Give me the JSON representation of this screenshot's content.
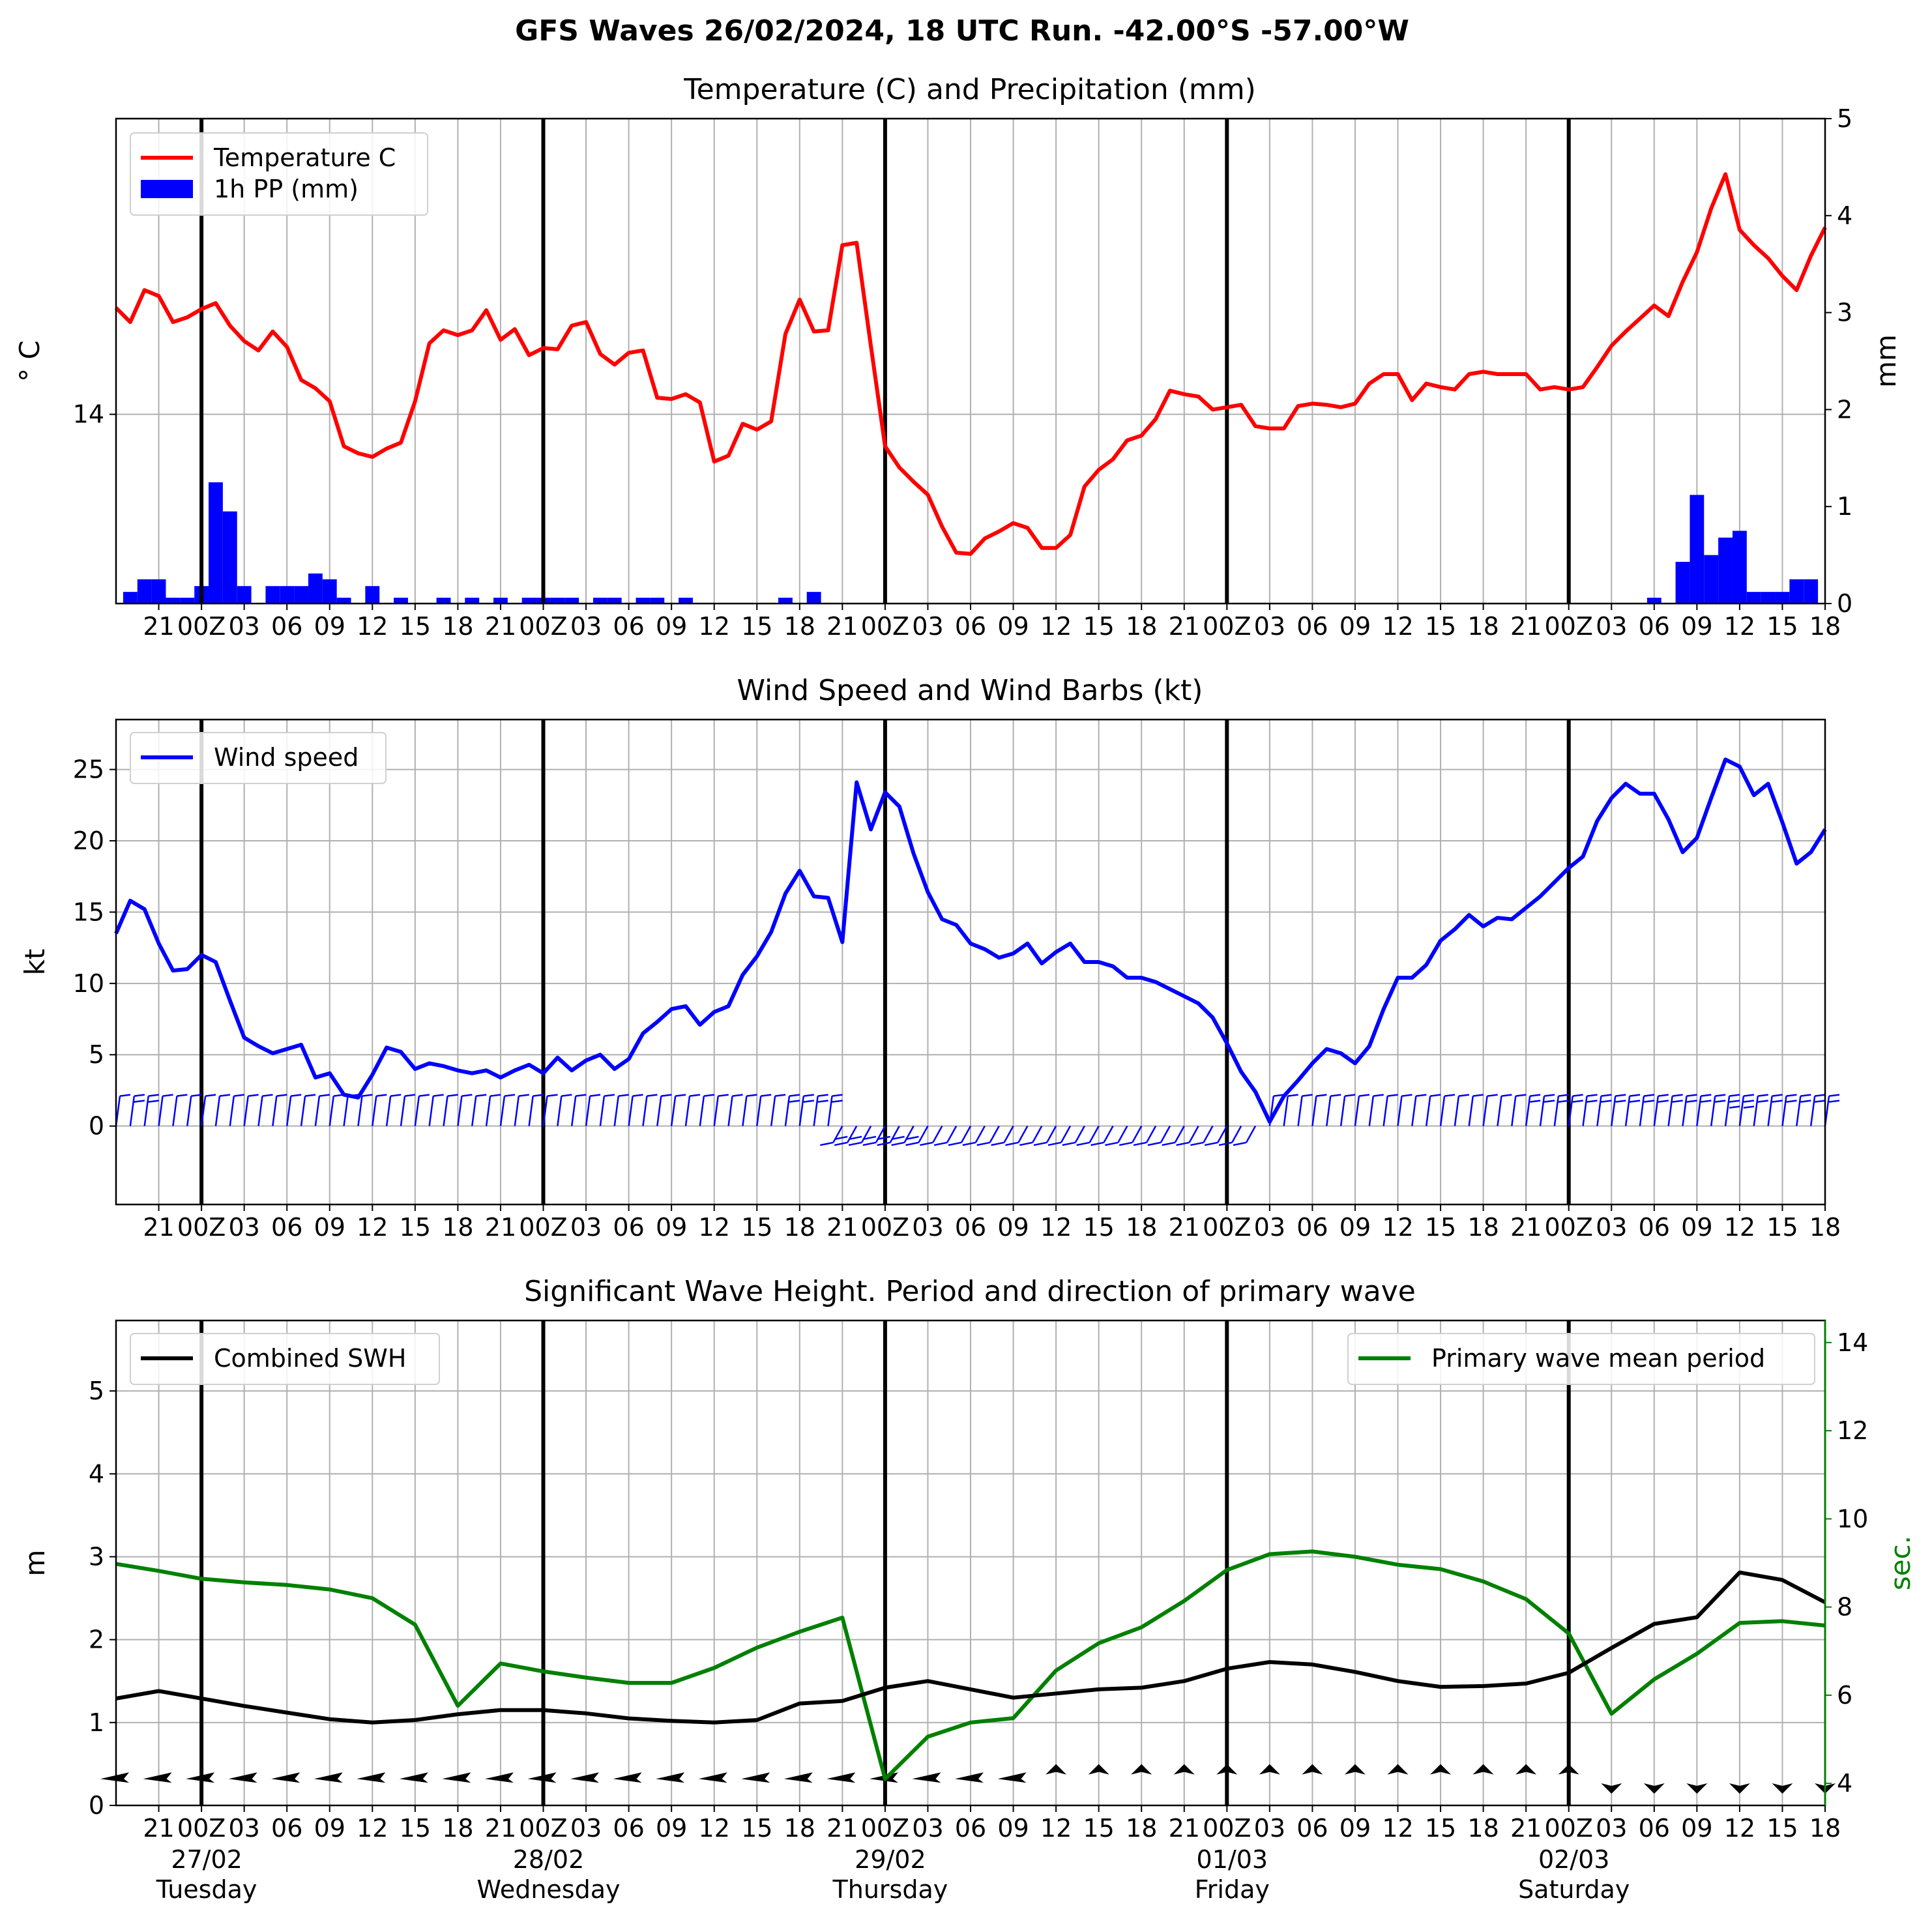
{
  "suptitle": "GFS Waves 26/02/2024, 18 UTC Run. -42.00°S -57.00°W",
  "time_axis": {
    "hour_start": 18,
    "hour_end": 138,
    "midnights": [
      24,
      48,
      72,
      96,
      120
    ],
    "tick_labels": [
      {
        "h": 21,
        "label": "21"
      },
      {
        "h": 24,
        "label": "00Z"
      },
      {
        "h": 27,
        "label": "03"
      },
      {
        "h": 30,
        "label": "06"
      },
      {
        "h": 33,
        "label": "09"
      },
      {
        "h": 36,
        "label": "12"
      },
      {
        "h": 39,
        "label": "15"
      },
      {
        "h": 42,
        "label": "18"
      },
      {
        "h": 45,
        "label": "21"
      },
      {
        "h": 48,
        "label": "00Z"
      },
      {
        "h": 51,
        "label": "03"
      },
      {
        "h": 54,
        "label": "06"
      },
      {
        "h": 57,
        "label": "09"
      },
      {
        "h": 60,
        "label": "12"
      },
      {
        "h": 63,
        "label": "15"
      },
      {
        "h": 66,
        "label": "18"
      },
      {
        "h": 69,
        "label": "21"
      },
      {
        "h": 72,
        "label": "00Z"
      },
      {
        "h": 75,
        "label": "03"
      },
      {
        "h": 78,
        "label": "06"
      },
      {
        "h": 81,
        "label": "09"
      },
      {
        "h": 84,
        "label": "12"
      },
      {
        "h": 87,
        "label": "15"
      },
      {
        "h": 90,
        "label": "18"
      },
      {
        "h": 93,
        "label": "21"
      },
      {
        "h": 96,
        "label": "00Z"
      },
      {
        "h": 99,
        "label": "03"
      },
      {
        "h": 102,
        "label": "06"
      },
      {
        "h": 105,
        "label": "09"
      },
      {
        "h": 108,
        "label": "12"
      },
      {
        "h": 111,
        "label": "15"
      },
      {
        "h": 114,
        "label": "18"
      },
      {
        "h": 117,
        "label": "21"
      },
      {
        "h": 120,
        "label": "00Z"
      },
      {
        "h": 123,
        "label": "03"
      },
      {
        "h": 126,
        "label": "06"
      },
      {
        "h": 129,
        "label": "09"
      },
      {
        "h": 132,
        "label": "12"
      },
      {
        "h": 135,
        "label": "15"
      },
      {
        "h": 138,
        "label": "18"
      }
    ],
    "day_labels": [
      {
        "h": 24,
        "date": "27/02",
        "weekday": "Tuesday"
      },
      {
        "h": 48,
        "date": "28/02",
        "weekday": "Wednesday"
      },
      {
        "h": 72,
        "date": "29/02",
        "weekday": "Thursday"
      },
      {
        "h": 96,
        "date": "01/03",
        "weekday": "Friday"
      },
      {
        "h": 120,
        "date": "02/03",
        "weekday": "Saturday"
      }
    ]
  },
  "chart_data": [
    {
      "type": "line",
      "title": "Temperature (C) and Precipitation (mm)",
      "ylabel": "° C",
      "y2label": "mm",
      "yticks": [
        14
      ],
      "ylim": [
        12.4,
        16.5
      ],
      "y2lim": [
        0,
        5
      ],
      "y2ticks": [
        0,
        1,
        2,
        3,
        4,
        5
      ],
      "grid": true,
      "legend_position": "top-left",
      "series": [
        {
          "name": "Temperature C",
          "color": "#ff0000",
          "axis": "left",
          "x": [
            18,
            19,
            20,
            21,
            22,
            23,
            24,
            25,
            26,
            27,
            28,
            29,
            30,
            31,
            32,
            33,
            34,
            35,
            36,
            37,
            38,
            39,
            40,
            41,
            42,
            43,
            44,
            45,
            46,
            47,
            48,
            49,
            50,
            51,
            52,
            53,
            54,
            55,
            56,
            57,
            58,
            59,
            60,
            61,
            62,
            63,
            64,
            65,
            66,
            67,
            68,
            69,
            70,
            71,
            72,
            73,
            74,
            75,
            76,
            77,
            78,
            79,
            80,
            81,
            82,
            83,
            84,
            85,
            86,
            87,
            88,
            89,
            90,
            91,
            92,
            93,
            94,
            95,
            96,
            97,
            98,
            99,
            100,
            101,
            102,
            103,
            104,
            105,
            106,
            107,
            108,
            109,
            110,
            111,
            112,
            113,
            114,
            115,
            116,
            117,
            118,
            119,
            120,
            121,
            122,
            123,
            124,
            125,
            126,
            127,
            128,
            129,
            130,
            131,
            132,
            133,
            134,
            135,
            136,
            137,
            138
          ],
          "values": [
            14.9,
            14.78,
            15.05,
            15.0,
            14.78,
            14.82,
            14.89,
            14.94,
            14.75,
            14.62,
            14.54,
            14.7,
            14.57,
            14.29,
            14.22,
            14.11,
            13.73,
            13.67,
            13.64,
            13.71,
            13.76,
            14.11,
            14.6,
            14.71,
            14.67,
            14.71,
            14.88,
            14.63,
            14.72,
            14.5,
            14.56,
            14.55,
            14.75,
            14.78,
            14.51,
            14.42,
            14.52,
            14.54,
            14.14,
            14.13,
            14.17,
            14.1,
            13.6,
            13.65,
            13.92,
            13.87,
            13.94,
            14.68,
            14.97,
            14.7,
            14.71,
            15.43,
            15.45,
            14.58,
            13.73,
            13.55,
            13.43,
            13.32,
            13.05,
            12.83,
            12.82,
            12.95,
            13.01,
            13.08,
            13.04,
            12.87,
            12.87,
            12.98,
            13.39,
            13.53,
            13.62,
            13.78,
            13.82,
            13.96,
            14.2,
            14.17,
            14.15,
            14.04,
            14.06,
            14.08,
            13.9,
            13.88,
            13.88,
            14.07,
            14.09,
            14.08,
            14.06,
            14.09,
            14.26,
            14.34,
            14.34,
            14.12,
            14.26,
            14.23,
            14.21,
            14.34,
            14.36,
            14.34,
            14.34,
            14.34,
            14.21,
            14.23,
            14.21,
            14.23,
            14.4,
            14.58,
            14.7,
            14.81,
            14.92,
            14.83,
            15.12,
            15.37,
            15.74,
            16.03,
            15.56,
            15.43,
            15.32,
            15.17,
            15.05,
            15.34,
            15.58
          ]
        },
        {
          "name": "1h PP (mm)",
          "color": "#0000ff",
          "axis": "right",
          "kind": "bar",
          "x": [
            19,
            20,
            21,
            22,
            23,
            24,
            25,
            26,
            27,
            29,
            30,
            31,
            32,
            33,
            34,
            36,
            38,
            41,
            43,
            45,
            47,
            48,
            49,
            50,
            51,
            52,
            53,
            54,
            55,
            56,
            58,
            65,
            67,
            120,
            126,
            127,
            128,
            129,
            130,
            131,
            132,
            133,
            134,
            135,
            136,
            137
          ],
          "values": [
            0.12,
            0.25,
            0.25,
            0.06,
            0.06,
            0.18,
            1.25,
            0.95,
            0.18,
            0.18,
            0.18,
            0.18,
            0.31,
            0.25,
            0.06,
            0.18,
            0.06,
            0.06,
            0.06,
            0.06,
            0.06,
            0.06,
            0.06,
            0.06,
            0.0,
            0.06,
            0.06,
            0.0,
            0.06,
            0.06,
            0.06,
            0.06,
            0.12,
            0.0,
            0.06,
            0.0,
            0.43,
            1.12,
            0.5,
            0.68,
            0.75,
            0.12,
            0.12,
            0.12,
            0.25,
            0.25
          ]
        }
      ]
    },
    {
      "type": "line",
      "title": "Wind Speed and Wind Barbs (kt)",
      "ylabel": "kt",
      "ylim": [
        -5.5,
        28.5
      ],
      "yticks": [
        0,
        5,
        10,
        15,
        20,
        25
      ],
      "grid": true,
      "legend_position": "top-left",
      "series": [
        {
          "name": "Wind speed",
          "color": "#0000ff",
          "x": [
            18,
            19,
            20,
            21,
            22,
            23,
            24,
            25,
            26,
            27,
            28,
            29,
            30,
            31,
            32,
            33,
            34,
            35,
            36,
            37,
            38,
            39,
            40,
            41,
            42,
            43,
            44,
            45,
            46,
            47,
            48,
            49,
            50,
            51,
            52,
            53,
            54,
            55,
            56,
            57,
            58,
            59,
            60,
            61,
            62,
            63,
            64,
            65,
            66,
            67,
            68,
            69,
            70,
            71,
            72,
            73,
            74,
            75,
            76,
            77,
            78,
            79,
            80,
            81,
            82,
            83,
            84,
            85,
            86,
            87,
            88,
            89,
            90,
            91,
            92,
            93,
            94,
            95,
            96,
            97,
            98,
            99,
            100,
            101,
            102,
            103,
            104,
            105,
            106,
            107,
            108,
            109,
            110,
            111,
            112,
            113,
            114,
            115,
            116,
            117,
            118,
            119,
            120,
            121,
            122,
            123,
            124,
            125,
            126,
            127,
            128,
            129,
            130,
            131,
            132,
            133,
            134,
            135,
            136,
            137,
            138
          ],
          "values": [
            13.5,
            15.8,
            15.2,
            12.8,
            10.9,
            11.0,
            12.0,
            11.5,
            8.8,
            6.2,
            5.6,
            5.1,
            5.4,
            5.7,
            3.4,
            3.7,
            2.2,
            2.0,
            3.6,
            5.5,
            5.2,
            4.0,
            4.4,
            4.2,
            3.9,
            3.7,
            3.9,
            3.4,
            3.9,
            4.3,
            3.7,
            4.8,
            3.9,
            4.6,
            5.0,
            4.0,
            4.7,
            6.5,
            7.3,
            8.2,
            8.4,
            7.1,
            8.0,
            8.4,
            10.6,
            11.9,
            13.6,
            16.3,
            17.9,
            16.1,
            16.0,
            12.9,
            24.1,
            20.8,
            23.4,
            22.4,
            19.1,
            16.4,
            14.5,
            14.1,
            12.8,
            12.4,
            11.8,
            12.1,
            12.8,
            11.4,
            12.2,
            12.8,
            11.5,
            11.5,
            11.2,
            10.4,
            10.4,
            10.1,
            9.6,
            9.1,
            8.6,
            7.6,
            5.8,
            3.8,
            2.4,
            0.3,
            2.1,
            3.2,
            4.4,
            5.4,
            5.1,
            4.4,
            5.6,
            8.2,
            10.4,
            10.4,
            11.3,
            13.0,
            13.8,
            14.8,
            14.0,
            14.6,
            14.5,
            15.3,
            16.1,
            17.1,
            18.1,
            18.9,
            21.4,
            23.0,
            24.0,
            23.3,
            23.3,
            21.5,
            19.2,
            20.2,
            23.0,
            25.7,
            25.2,
            23.2,
            24.0,
            21.3,
            18.4,
            19.2,
            20.8
          ]
        }
      ]
    },
    {
      "type": "line",
      "title": "Significant Wave Height. Period and direction of primary wave",
      "ylabel": "m",
      "y2label": "sec.",
      "ylim": [
        0,
        5.85
      ],
      "yticks": [
        0,
        1,
        2,
        3,
        4,
        5
      ],
      "y2lim": [
        3.5,
        14.5
      ],
      "y2ticks": [
        4,
        6,
        8,
        10,
        12,
        14
      ],
      "grid": true,
      "legend_position": "top-left",
      "series": [
        {
          "name": "Combined SWH",
          "color": "#000000",
          "axis": "left",
          "x": [
            18,
            21,
            24,
            27,
            30,
            33,
            36,
            39,
            42,
            45,
            48,
            51,
            54,
            57,
            60,
            63,
            66,
            69,
            72,
            75,
            78,
            81,
            84,
            87,
            90,
            93,
            96,
            99,
            102,
            105,
            108,
            111,
            114,
            117,
            120,
            123,
            126,
            129,
            132,
            135,
            138
          ],
          "values": [
            1.29,
            1.38,
            1.29,
            1.2,
            1.12,
            1.04,
            1.0,
            1.03,
            1.1,
            1.15,
            1.15,
            1.11,
            1.05,
            1.02,
            1.0,
            1.03,
            1.23,
            1.26,
            1.42,
            1.5,
            1.4,
            1.3,
            1.35,
            1.4,
            1.42,
            1.5,
            1.65,
            1.73,
            1.7,
            1.61,
            1.5,
            1.43,
            1.44,
            1.47,
            1.6,
            1.9,
            2.19,
            2.27,
            2.81,
            2.72,
            2.45
          ]
        },
        {
          "name": "Primary wave mean period",
          "color": "#008000",
          "axis": "right",
          "x": [
            18,
            21,
            24,
            27,
            30,
            33,
            36,
            39,
            42,
            45,
            48,
            51,
            54,
            57,
            60,
            63,
            66,
            69,
            72,
            75,
            78,
            81,
            84,
            87,
            90,
            93,
            96,
            99,
            102,
            105,
            108,
            111,
            114,
            117,
            120,
            123,
            126,
            129,
            132,
            135,
            138
          ],
          "values": [
            8.98,
            8.82,
            8.64,
            8.56,
            8.5,
            8.4,
            8.2,
            7.6,
            5.76,
            6.72,
            6.54,
            6.4,
            6.28,
            6.28,
            6.62,
            7.08,
            7.44,
            7.76,
            4.1,
            5.06,
            5.38,
            5.48,
            6.56,
            7.18,
            7.54,
            8.14,
            8.84,
            9.2,
            9.26,
            9.14,
            8.96,
            8.86,
            8.58,
            8.18,
            7.4,
            5.58,
            6.36,
            6.94,
            7.64,
            7.68,
            7.58
          ]
        }
      ]
    }
  ]
}
